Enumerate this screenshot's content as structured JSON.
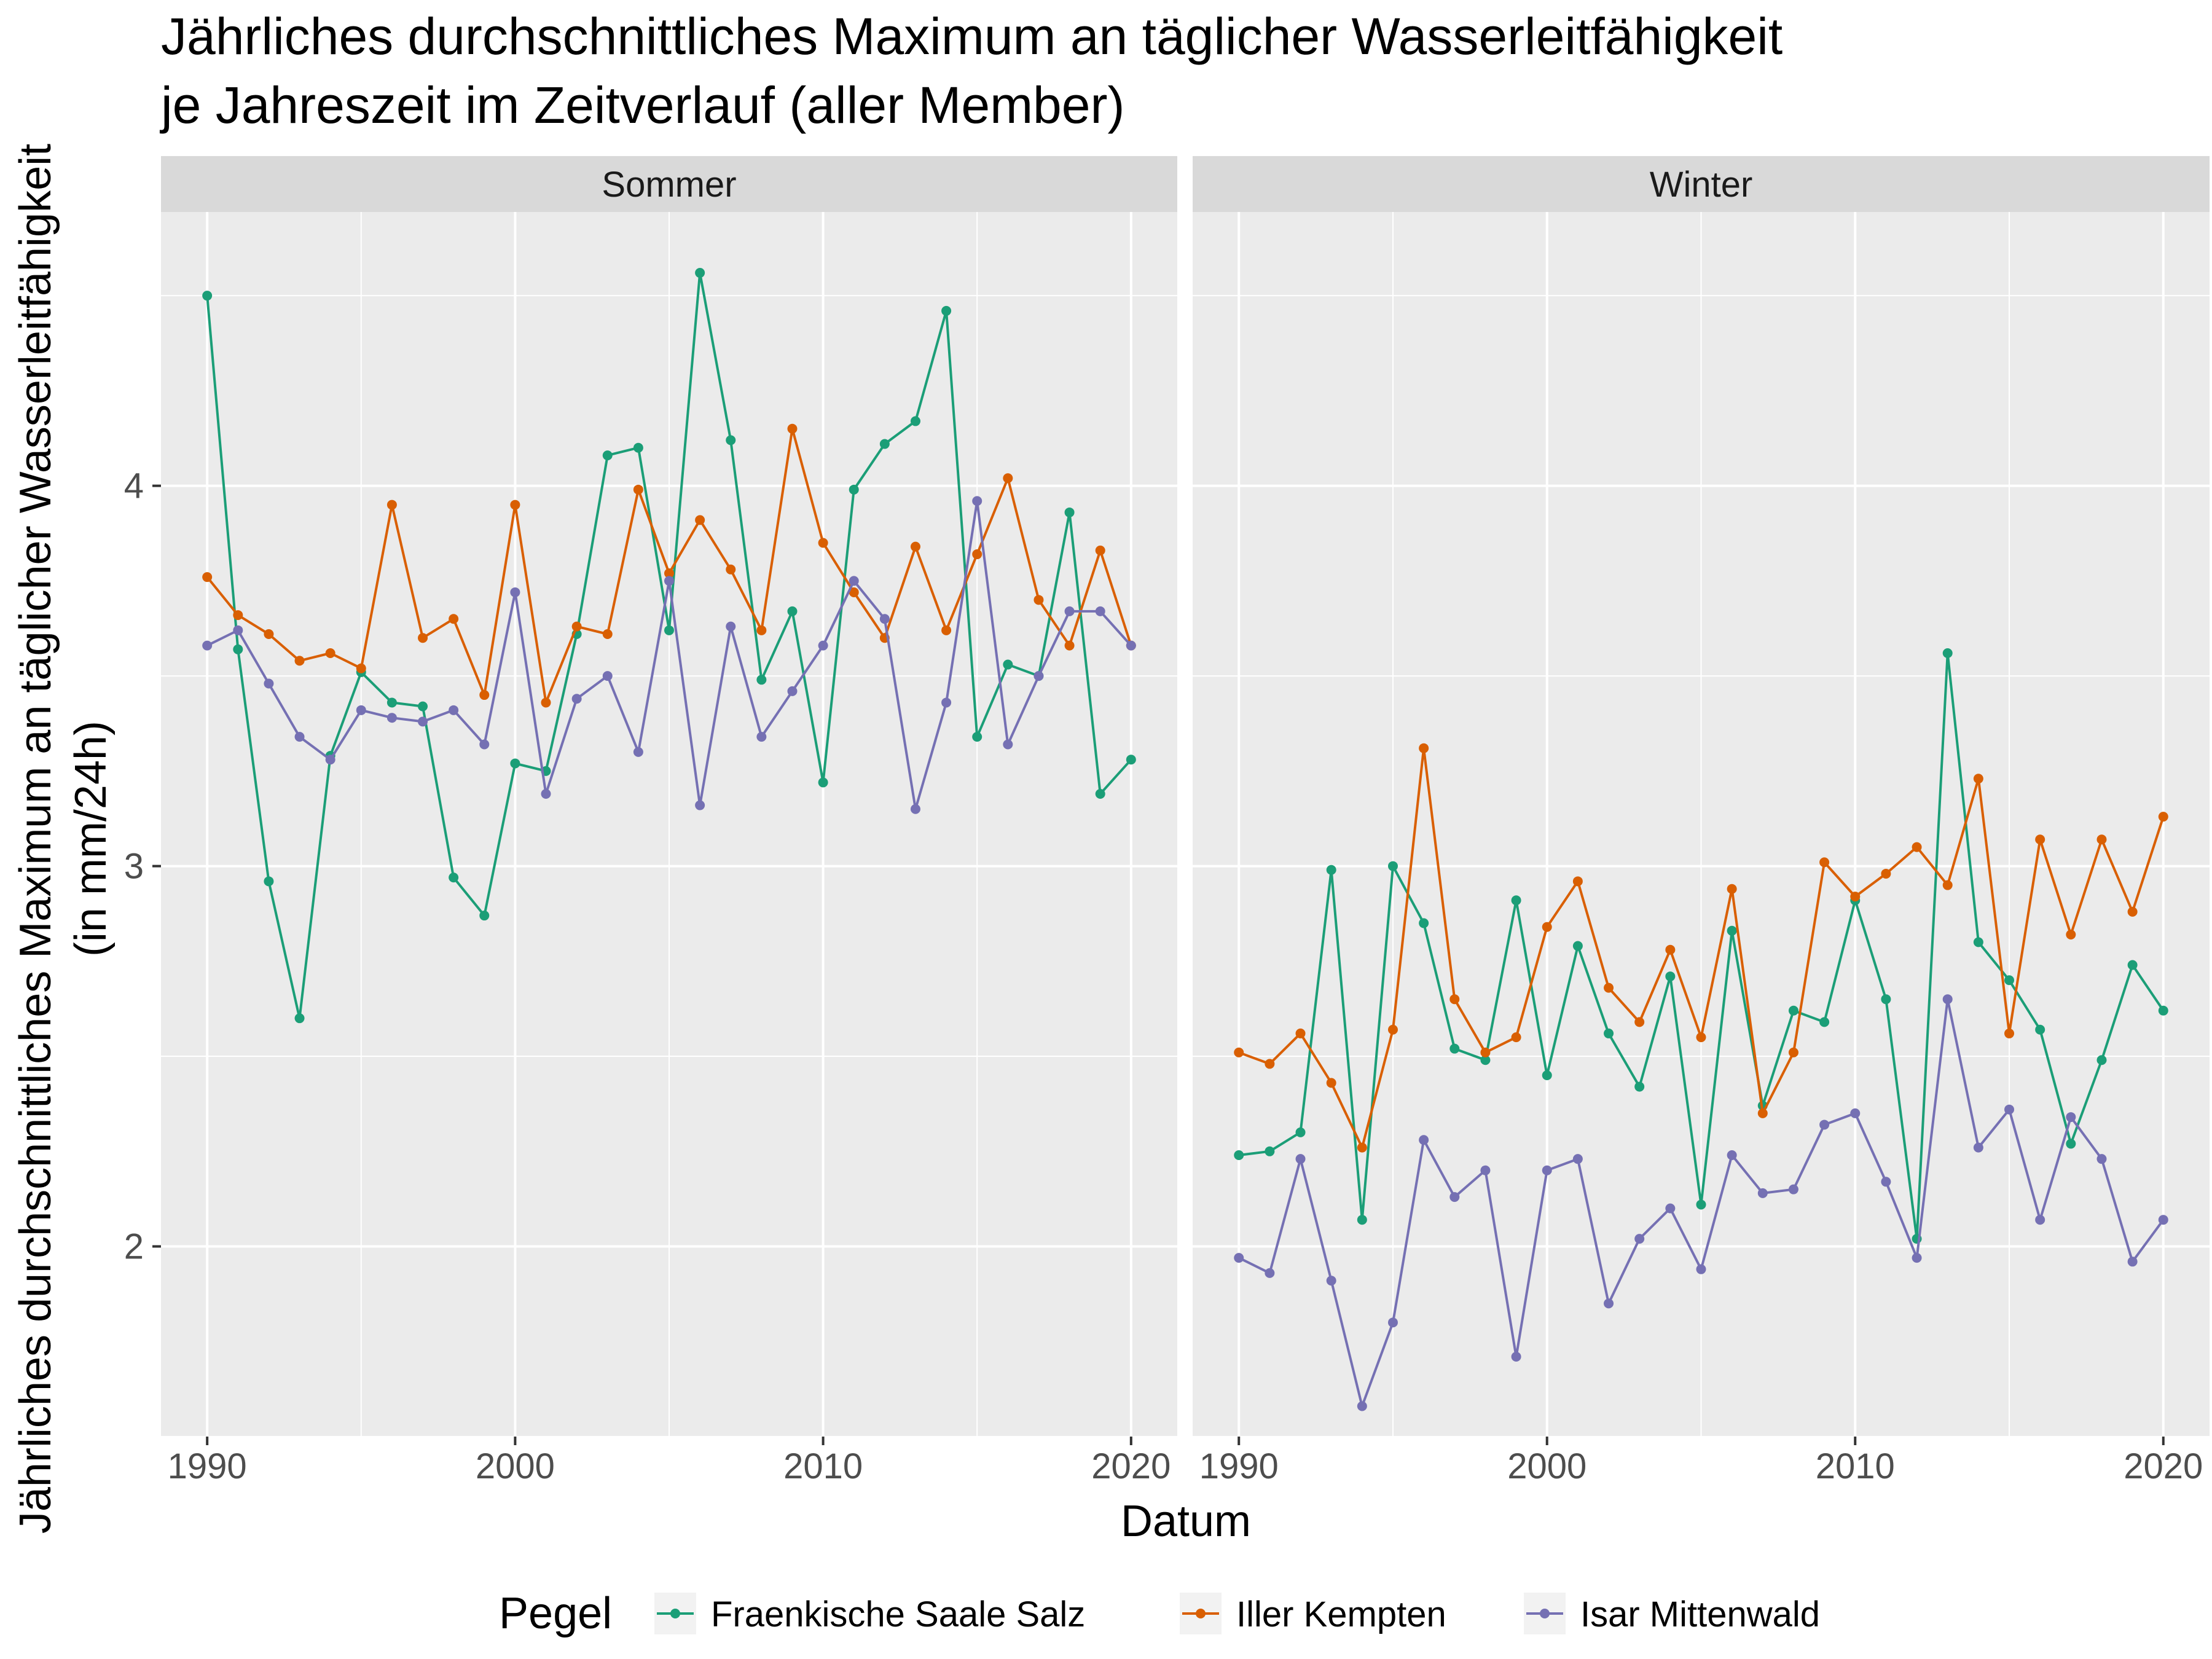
{
  "chart_data": {
    "type": "line",
    "title_line1": "Jährliches durchschnittliches Maximum an täglicher Wasserleitfähigkeit",
    "title_line2": "je Jahreszeit im Zeitverlauf (aller Member)",
    "xlabel": "Datum",
    "ylabel_line1": "Jährliches durchschnittliches Maximum an täglicher Wasserleitfähigkeit",
    "ylabel_line2": "(in mm/24h)",
    "legend_title": "Pegel",
    "legend_position": "bottom",
    "grid": true,
    "xlim": [
      1988.5,
      2021.5
    ],
    "ylim": [
      1.5,
      4.72
    ],
    "x_ticks": [
      1990,
      2000,
      2010,
      2020
    ],
    "y_ticks": [
      2,
      3,
      4
    ],
    "x": [
      1990,
      1991,
      1992,
      1993,
      1994,
      1995,
      1996,
      1997,
      1998,
      1999,
      2000,
      2001,
      2002,
      2003,
      2004,
      2005,
      2006,
      2007,
      2008,
      2009,
      2010,
      2011,
      2012,
      2013,
      2014,
      2015,
      2016,
      2017,
      2018,
      2019,
      2020
    ],
    "series_names": [
      "Fraenkische Saale Salz",
      "Iller Kempten",
      "Isar Mittenwald"
    ],
    "colors": [
      "#1b9e77",
      "#d95f02",
      "#7570b3"
    ],
    "panels": [
      {
        "name": "Sommer",
        "series": [
          {
            "name": "Fraenkische Saale Salz",
            "values": [
              4.5,
              3.57,
              2.96,
              2.6,
              3.29,
              3.51,
              3.43,
              3.42,
              2.97,
              2.87,
              3.27,
              3.25,
              3.61,
              4.08,
              4.1,
              3.62,
              4.56,
              4.12,
              3.49,
              3.67,
              3.22,
              3.99,
              4.11,
              4.17,
              4.46,
              3.34,
              3.53,
              3.5,
              3.93,
              3.19,
              3.28
            ]
          },
          {
            "name": "Iller Kempten",
            "values": [
              3.76,
              3.66,
              3.61,
              3.54,
              3.56,
              3.52,
              3.95,
              3.6,
              3.65,
              3.45,
              3.95,
              3.43,
              3.63,
              3.61,
              3.99,
              3.77,
              3.91,
              3.78,
              3.62,
              4.15,
              3.85,
              3.72,
              3.6,
              3.84,
              3.62,
              3.82,
              4.02,
              3.7,
              3.58,
              3.83,
              3.58
            ]
          },
          {
            "name": "Isar Mittenwald",
            "values": [
              3.58,
              3.62,
              3.48,
              3.34,
              3.28,
              3.41,
              3.39,
              3.38,
              3.41,
              3.32,
              3.72,
              3.19,
              3.44,
              3.5,
              3.3,
              3.75,
              3.16,
              3.63,
              3.34,
              3.46,
              3.58,
              3.75,
              3.65,
              3.15,
              3.43,
              3.96,
              3.32,
              3.5,
              3.67,
              3.67,
              3.58
            ]
          }
        ]
      },
      {
        "name": "Winter",
        "series": [
          {
            "name": "Fraenkische Saale Salz",
            "values": [
              2.24,
              2.25,
              2.3,
              2.99,
              2.07,
              3.0,
              2.85,
              2.52,
              2.49,
              2.91,
              2.45,
              2.79,
              2.56,
              2.42,
              2.71,
              2.11,
              2.83,
              2.37,
              2.62,
              2.59,
              2.91,
              2.65,
              2.02,
              3.56,
              2.8,
              2.7,
              2.57,
              2.27,
              2.49,
              2.74,
              2.62
            ]
          },
          {
            "name": "Iller Kempten",
            "values": [
              2.51,
              2.48,
              2.56,
              2.43,
              2.26,
              2.57,
              3.31,
              2.65,
              2.51,
              2.55,
              2.84,
              2.96,
              2.68,
              2.59,
              2.78,
              2.55,
              2.94,
              2.35,
              2.51,
              3.01,
              2.92,
              2.98,
              3.05,
              2.95,
              3.23,
              2.56,
              3.07,
              2.82,
              3.07,
              2.88,
              3.13
            ]
          },
          {
            "name": "Isar Mittenwald",
            "values": [
              1.97,
              1.93,
              2.23,
              1.91,
              1.58,
              1.8,
              2.28,
              2.13,
              2.2,
              1.71,
              2.2,
              2.23,
              1.85,
              2.02,
              2.1,
              1.94,
              2.24,
              2.14,
              2.15,
              2.32,
              2.35,
              2.17,
              1.97,
              2.65,
              2.26,
              2.36,
              2.07,
              2.34,
              2.23,
              1.96,
              2.07
            ]
          }
        ]
      }
    ]
  }
}
